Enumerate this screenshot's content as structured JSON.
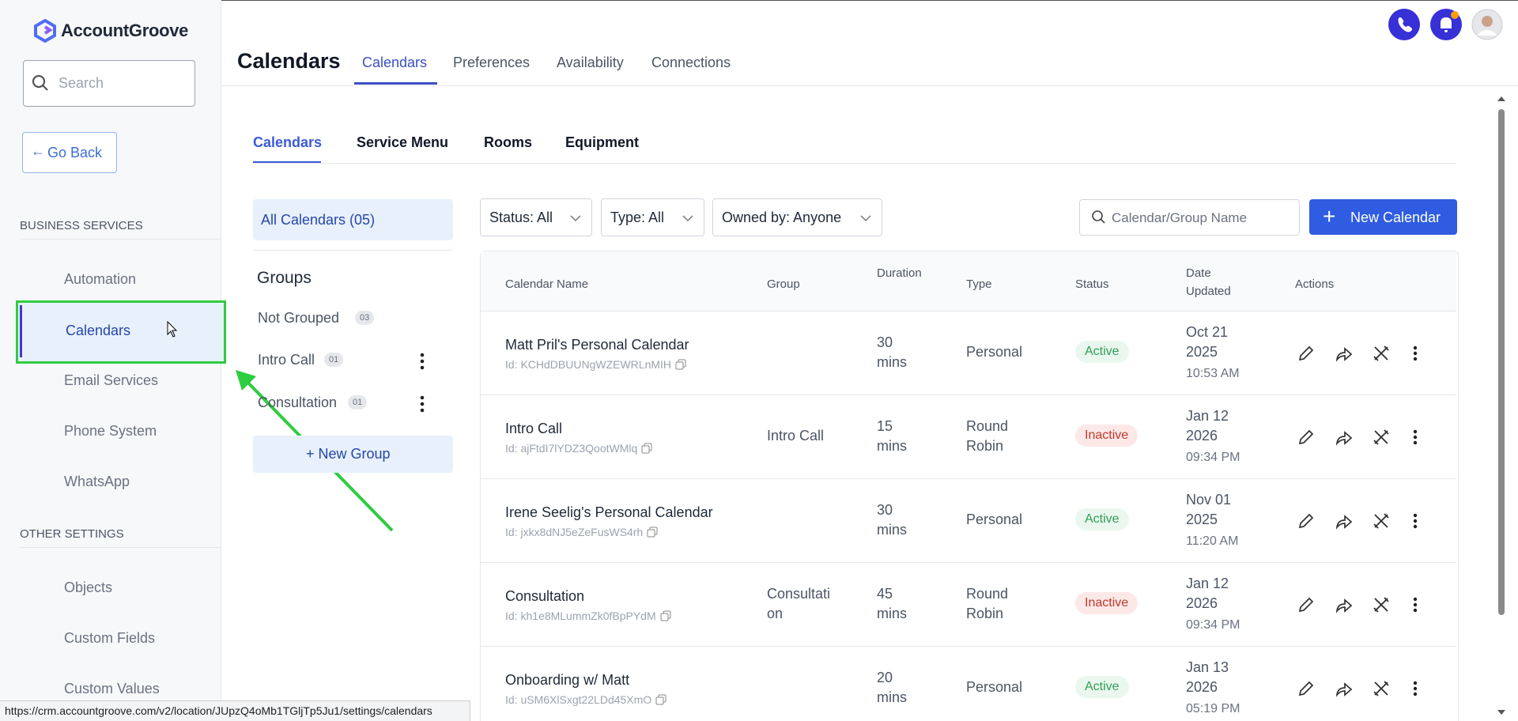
{
  "brand": "AccountGroove",
  "sidebar": {
    "search_placeholder": "Search",
    "go_back": "Go Back",
    "sections": [
      {
        "title": "BUSINESS SERVICES",
        "items": [
          "Automation",
          "Calendars",
          "Email Services",
          "Phone System",
          "WhatsApp"
        ]
      },
      {
        "title": "OTHER SETTINGS",
        "items": [
          "Objects",
          "Custom Fields",
          "Custom Values"
        ]
      }
    ]
  },
  "header": {
    "title": "Calendars",
    "tabs": [
      "Calendars",
      "Preferences",
      "Availability",
      "Connections"
    ]
  },
  "subtabs": [
    "Calendars",
    "Service Menu",
    "Rooms",
    "Equipment"
  ],
  "groups_panel": {
    "all": "All Calendars (05)",
    "title": "Groups",
    "groups": [
      {
        "name": "Not Grouped",
        "count": "03"
      },
      {
        "name": "Intro Call",
        "count": "01"
      },
      {
        "name": "Consultation",
        "count": "01"
      }
    ],
    "new_group": "+ New Group"
  },
  "filters": [
    "Status: All",
    "Type: All",
    "Owned by: Anyone"
  ],
  "search_placeholder": "Calendar/Group Name",
  "new_calendar": "New Calendar",
  "table": {
    "headers": [
      "Calendar Name",
      "Group",
      "Duration",
      "Type",
      "Status",
      "Date Updated",
      "Actions"
    ],
    "rows": [
      {
        "name": "Matt Pril's Personal Calendar",
        "id": "Id: KCHdDBUUNgWZEWRLnMIH",
        "group": "",
        "duration": "30 mins",
        "type": "Personal",
        "status": "Active",
        "date": "Oct 21 2025",
        "time": "10:53 AM"
      },
      {
        "name": "Intro Call",
        "id": "Id: ajFtdI7lYDZ3QootWMlq",
        "group": "Intro Call",
        "duration": "15 mins",
        "type": "Round Robin",
        "status": "Inactive",
        "date": "Jan 12 2026",
        "time": "09:34 PM"
      },
      {
        "name": "Irene Seelig's Personal Calendar",
        "id": "Id: jxkx8dNJ5eZeFusWS4rh",
        "group": "",
        "duration": "30 mins",
        "type": "Personal",
        "status": "Active",
        "date": "Nov 01 2025",
        "time": "11:20 AM"
      },
      {
        "name": "Consultation",
        "id": "Id: kh1e8MLummZk0fBpPYdM",
        "group": "Consultation",
        "duration": "45 mins",
        "type": "Round Robin",
        "status": "Inactive",
        "date": "Jan 12 2026",
        "time": "09:34 PM"
      },
      {
        "name": "Onboarding w/ Matt",
        "id": "Id: uSM6XlSxgt22LDd45XmO",
        "group": "",
        "duration": "20 mins",
        "type": "Personal",
        "status": "Active",
        "date": "Jan 13 2026",
        "time": "05:19 PM"
      }
    ]
  },
  "status_url": "https://crm.accountgroove.com/v2/location/JUpzQ4oMb1TGljTp5Ju1/settings/calendars"
}
